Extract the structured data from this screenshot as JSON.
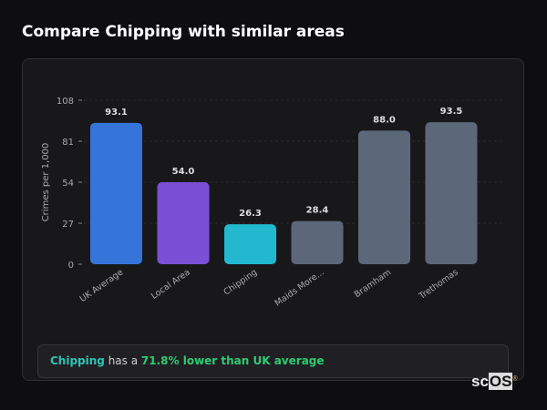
{
  "title": "Compare Chipping with similar areas",
  "chart_data": {
    "type": "bar",
    "ylabel": "Crimes per 1,000",
    "ylim": [
      0,
      108
    ],
    "yticks": [
      0,
      27,
      54,
      81,
      108
    ],
    "grid": true,
    "categories": [
      "UK Average",
      "Local Area",
      "Chipping",
      "Maids More...",
      "Bramham",
      "Trethomas"
    ],
    "values": [
      93.1,
      54.0,
      26.3,
      28.4,
      88.0,
      93.5
    ],
    "value_labels": [
      "93.1",
      "54.0",
      "26.3",
      "28.4",
      "88.0",
      "93.5"
    ],
    "colors": [
      "#3575d9",
      "#7b4fd6",
      "#22b8cf",
      "#5c6779",
      "#5c6779",
      "#5c6779"
    ]
  },
  "callout": {
    "area": "Chipping",
    "middle": " has a ",
    "highlight": "71.8% lower than UK average"
  },
  "logo": {
    "a": "sc",
    "b": "OS",
    "mark": "®"
  }
}
